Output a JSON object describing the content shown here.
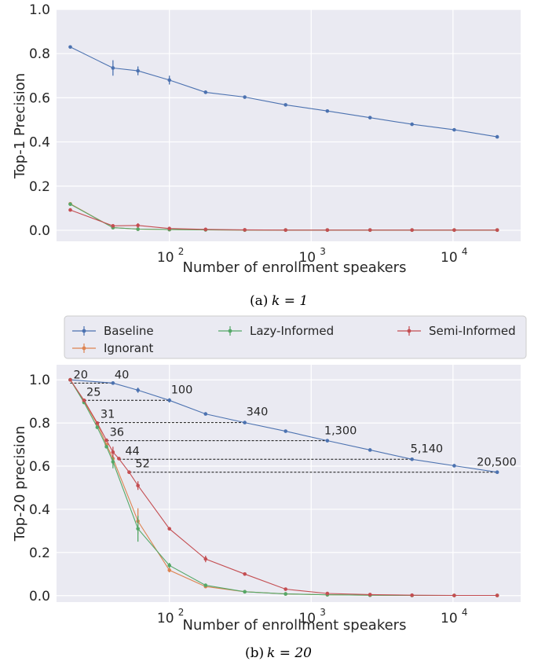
{
  "chart_data": [
    {
      "type": "line",
      "caption_label": "(a)",
      "caption_math": "k = 1",
      "xlabel": "Number of enrollment speakers",
      "ylabel": "Top-1 Precision",
      "xscale": "log",
      "xlim": [
        16,
        30000
      ],
      "ylim": [
        -0.05,
        1.0
      ],
      "yticks": [
        "0.0",
        "0.2",
        "0.4",
        "0.6",
        "0.8",
        "1.0"
      ],
      "xticks": [
        {
          "base": "10",
          "exp": "2"
        },
        {
          "base": "10",
          "exp": "3"
        },
        {
          "base": "10",
          "exp": "4"
        }
      ],
      "grid": true,
      "series": [
        {
          "name": "Baseline",
          "color": "#4c72b0",
          "x": [
            20,
            40,
            60,
            100,
            180,
            340,
            660,
            1300,
            2600,
            5140,
            10200,
            20500
          ],
          "y": [
            0.83,
            0.735,
            0.722,
            0.68,
            0.625,
            0.603,
            0.568,
            0.54,
            0.51,
            0.48,
            0.455,
            0.423
          ],
          "err": [
            0,
            0.035,
            0.02,
            0.02,
            0.008,
            0.005,
            0.005,
            0.004,
            0.004,
            0.004,
            0.004,
            0.004
          ]
        },
        {
          "name": "Ignorant",
          "color": "#dd8452",
          "x": [
            20,
            40,
            60,
            100,
            180,
            340,
            660,
            1300,
            2600,
            5140,
            10200,
            20500
          ],
          "y": [
            0.12,
            0.012,
            0.005,
            0.003,
            0.002,
            0.001,
            0.001,
            0.001,
            0.001,
            0.001,
            0.001,
            0.001
          ],
          "err": [
            0,
            0,
            0,
            0,
            0,
            0,
            0,
            0,
            0,
            0,
            0,
            0
          ]
        },
        {
          "name": "Lazy-Informed",
          "color": "#55a868",
          "x": [
            20,
            40,
            60,
            100,
            180,
            340,
            660,
            1300,
            2600,
            5140,
            10200,
            20500
          ],
          "y": [
            0.118,
            0.012,
            0.005,
            0.003,
            0.002,
            0.001,
            0.001,
            0.001,
            0.001,
            0.001,
            0.001,
            0.001
          ],
          "err": [
            0,
            0,
            0,
            0,
            0,
            0,
            0,
            0,
            0,
            0,
            0,
            0
          ]
        },
        {
          "name": "Semi-Informed",
          "color": "#c44e52",
          "x": [
            20,
            40,
            60,
            100,
            180,
            340,
            660,
            1300,
            2600,
            5140,
            10200,
            20500
          ],
          "y": [
            0.092,
            0.02,
            0.022,
            0.008,
            0.004,
            0.002,
            0.001,
            0.001,
            0.001,
            0.001,
            0.001,
            0.001
          ],
          "err": [
            0,
            0.005,
            0.01,
            0.003,
            0,
            0,
            0,
            0,
            0,
            0,
            0,
            0
          ]
        }
      ]
    },
    {
      "type": "line",
      "caption_label": "(b)",
      "caption_math": "k = 20",
      "xlabel": "Number of enrollment speakers",
      "ylabel": "Top-20 precision",
      "xscale": "log",
      "xlim": [
        16,
        30000
      ],
      "ylim": [
        -0.03,
        1.07
      ],
      "yticks": [
        "0.0",
        "0.2",
        "0.4",
        "0.6",
        "0.8",
        "1.0"
      ],
      "xticks": [
        {
          "base": "10",
          "exp": "2"
        },
        {
          "base": "10",
          "exp": "3"
        },
        {
          "base": "10",
          "exp": "4"
        }
      ],
      "grid": true,
      "legend_position": "top, outside plot",
      "series": [
        {
          "name": "Baseline",
          "color": "#4c72b0",
          "x": [
            20,
            40,
            60,
            100,
            180,
            340,
            660,
            1300,
            2600,
            5140,
            10200,
            20500
          ],
          "y": [
            1.0,
            0.985,
            0.952,
            0.905,
            0.842,
            0.802,
            0.762,
            0.718,
            0.675,
            0.632,
            0.602,
            0.572
          ],
          "err": [
            0,
            0,
            0.012,
            0.01,
            0,
            0,
            0,
            0,
            0,
            0,
            0,
            0
          ]
        },
        {
          "name": "Ignorant",
          "color": "#dd8452",
          "x": [
            20,
            25,
            31,
            36,
            40,
            60,
            100,
            180,
            340,
            660,
            1300,
            2600,
            5140,
            10200,
            20500
          ],
          "y": [
            1.0,
            0.9,
            0.795,
            0.7,
            0.635,
            0.345,
            0.118,
            0.042,
            0.018,
            0.008,
            0.004,
            0.002,
            0.001,
            0.001,
            0.001
          ],
          "err": [
            0,
            0,
            0,
            0,
            0.025,
            0.06,
            0.01,
            0,
            0,
            0,
            0,
            0,
            0,
            0,
            0
          ]
        },
        {
          "name": "Lazy-Informed",
          "color": "#55a868",
          "x": [
            20,
            25,
            31,
            36,
            40,
            60,
            100,
            180,
            340,
            660,
            1300,
            2600,
            5140,
            10200,
            20500
          ],
          "y": [
            1.0,
            0.895,
            0.78,
            0.69,
            0.62,
            0.31,
            0.14,
            0.048,
            0.018,
            0.008,
            0.004,
            0.002,
            0.001,
            0.001,
            0.001
          ],
          "err": [
            0,
            0,
            0,
            0,
            0.03,
            0.06,
            0.012,
            0,
            0,
            0,
            0,
            0,
            0,
            0,
            0
          ]
        },
        {
          "name": "Semi-Informed",
          "color": "#c44e52",
          "x": [
            20,
            25,
            31,
            36,
            40,
            44,
            52,
            60,
            100,
            180,
            340,
            660,
            1300,
            2600,
            5140,
            10200,
            20500
          ],
          "y": [
            1.0,
            0.905,
            0.8,
            0.72,
            0.665,
            0.635,
            0.572,
            0.51,
            0.31,
            0.17,
            0.1,
            0.03,
            0.01,
            0.005,
            0.002,
            0.001,
            0.001
          ],
          "err": [
            0,
            0,
            0,
            0,
            0.025,
            0,
            0,
            0.02,
            0,
            0.015,
            0,
            0,
            0,
            0,
            0,
            0,
            0
          ]
        }
      ],
      "annotations": [
        {
          "label": "20",
          "from_x": 20,
          "to_x": 40,
          "y": 0.985
        },
        {
          "label": "40",
          "from_x": 40,
          "to_x": 40,
          "y": 0.985
        },
        {
          "label": "25",
          "from_x": 25,
          "to_x": 100,
          "y": 0.905
        },
        {
          "label": "100",
          "from_x": 100,
          "to_x": 100,
          "y": 0.905
        },
        {
          "label": "31",
          "from_x": 31,
          "to_x": 340,
          "y": 0.802
        },
        {
          "label": "340",
          "from_x": 340,
          "to_x": 340,
          "y": 0.802
        },
        {
          "label": "36",
          "from_x": 36,
          "to_x": 1300,
          "y": 0.718
        },
        {
          "label": "1,300",
          "from_x": 1300,
          "to_x": 1300,
          "y": 0.718
        },
        {
          "label": "44",
          "from_x": 44,
          "to_x": 5140,
          "y": 0.632
        },
        {
          "label": "5,140",
          "from_x": 5140,
          "to_x": 5140,
          "y": 0.632
        },
        {
          "label": "52",
          "from_x": 52,
          "to_x": 20500,
          "y": 0.572
        },
        {
          "label": "20,500",
          "from_x": 20500,
          "to_x": 20500,
          "y": 0.572
        }
      ]
    }
  ]
}
